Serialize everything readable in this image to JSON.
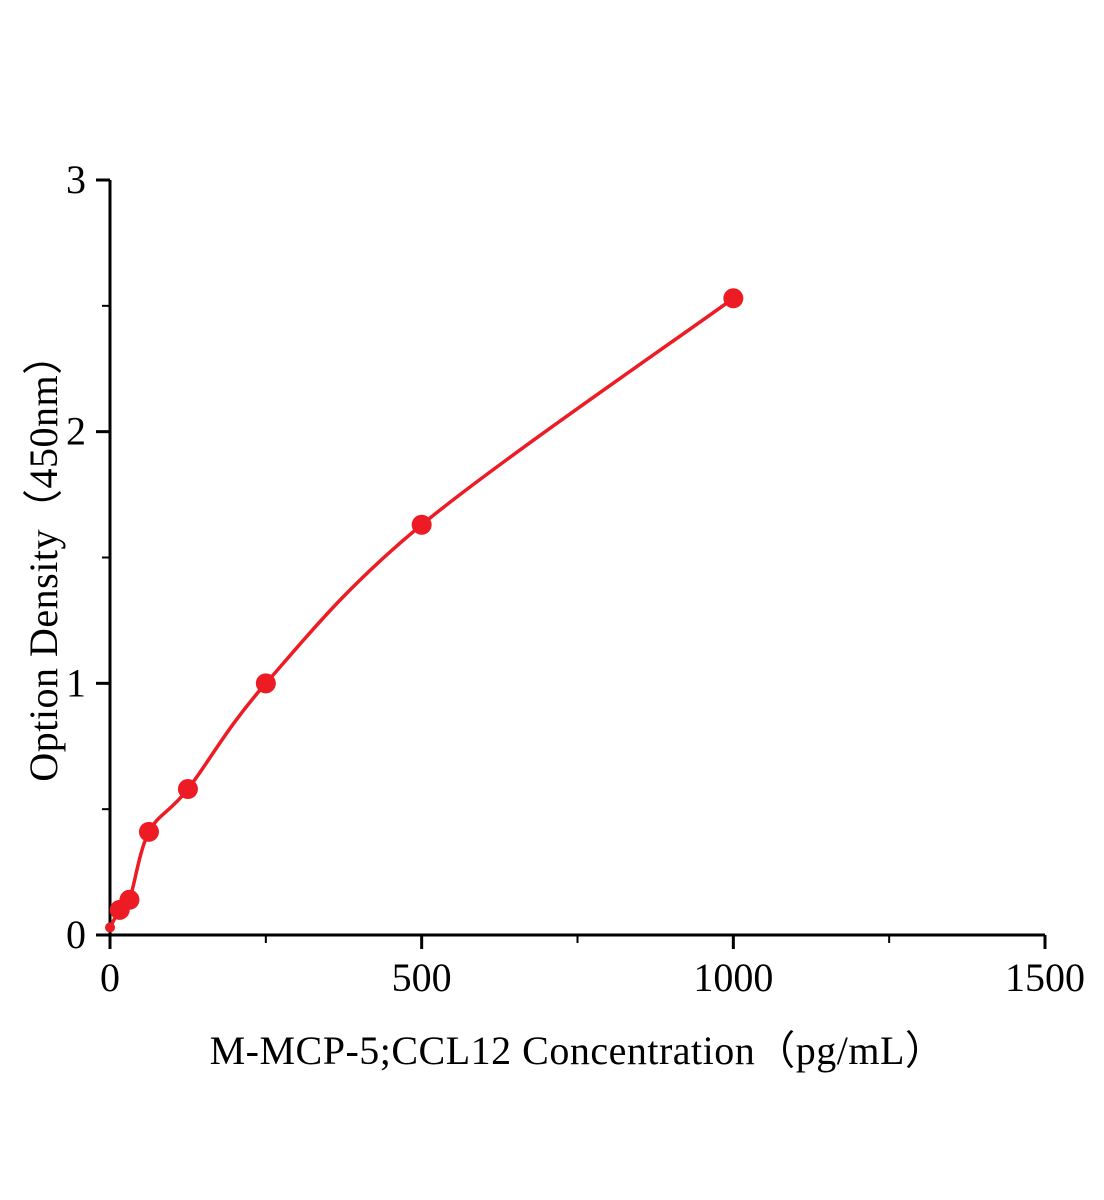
{
  "chart_data": {
    "type": "scatter",
    "subtype": "scatter-with-smooth-line",
    "x": [
      0,
      15.6,
      31.2,
      62.5,
      125,
      250,
      500,
      1000
    ],
    "y": [
      0.03,
      0.1,
      0.14,
      0.41,
      0.58,
      1.0,
      1.63,
      2.53
    ],
    "xlabel": "M-MCP-5;CCL12  Concentration（pg/mL）",
    "ylabel": "Option Density（450nm）",
    "xlim": [
      0,
      1500
    ],
    "ylim": [
      0,
      3
    ],
    "x_major_ticks": [
      0,
      500,
      1000,
      1500
    ],
    "x_minor_ticks": [
      250,
      750,
      1250
    ],
    "y_major_ticks": [
      0,
      1,
      2,
      3
    ],
    "y_minor_ticks": [
      0.5,
      1.5,
      2.5
    ],
    "grid": false,
    "legend": null,
    "line_color": "#ed1c24",
    "marker_color": "#ed1c24",
    "axis_color": "#000000"
  }
}
